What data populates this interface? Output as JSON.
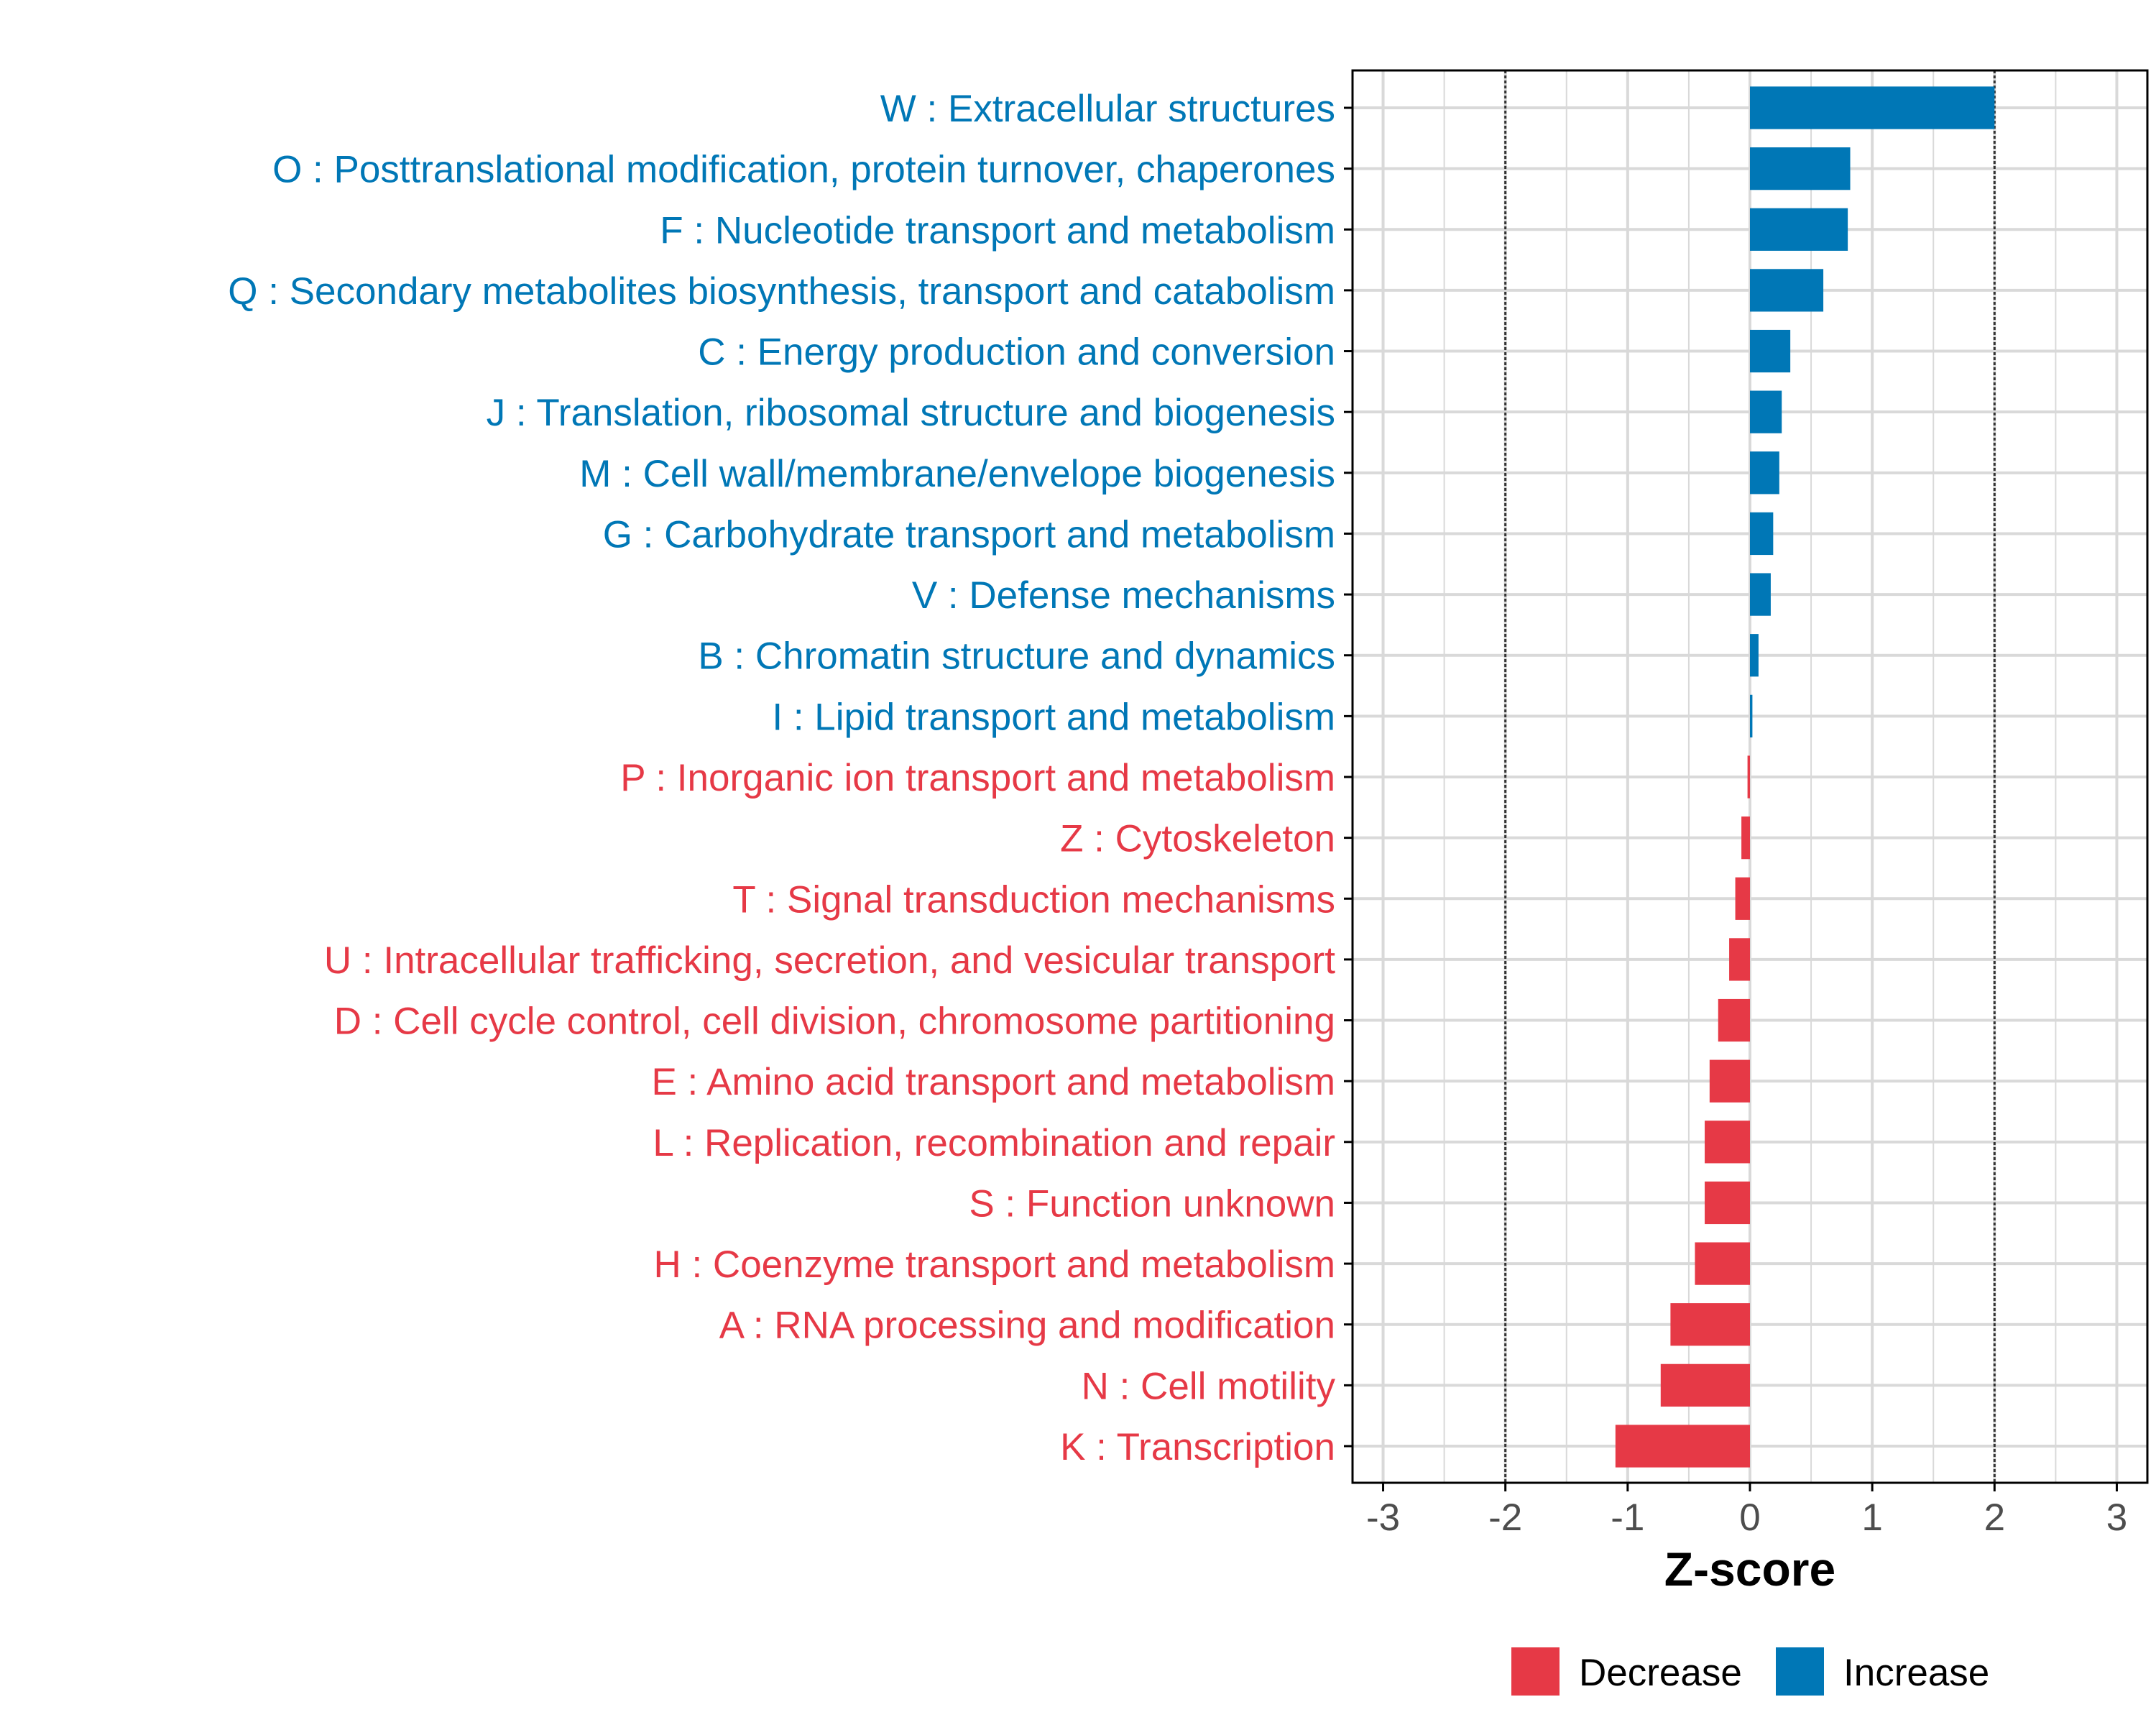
{
  "chart_data": {
    "type": "bar",
    "orientation": "horizontal",
    "title": "",
    "xlabel": "Z-score",
    "ylabel": "",
    "xlim": [
      -3.25,
      3.25
    ],
    "x_ticks": [
      "-3",
      "-2",
      "-1",
      "0",
      "1",
      "2",
      "3"
    ],
    "x_tick_values": [
      -3,
      -2,
      -1,
      0,
      1,
      2,
      3
    ],
    "reference_lines": [
      -2,
      2
    ],
    "grid": true,
    "categories": [
      "W : Extracellular structures",
      "O : Posttranslational modification, protein turnover, chaperones",
      "F : Nucleotide transport and metabolism",
      "Q : Secondary metabolites biosynthesis, transport and catabolism",
      "C : Energy production and conversion",
      "J : Translation, ribosomal structure and biogenesis",
      "M : Cell wall/membrane/envelope biogenesis",
      "G : Carbohydrate transport and metabolism",
      "V : Defense mechanisms",
      "B : Chromatin structure and dynamics",
      "I : Lipid transport and metabolism",
      "P : Inorganic ion transport and metabolism",
      "Z : Cytoskeleton",
      "T : Signal transduction mechanisms",
      "U : Intracellular trafficking, secretion, and vesicular transport",
      "D : Cell cycle control, cell division, chromosome partitioning",
      "E : Amino acid transport and metabolism",
      "L : Replication, recombination and repair",
      "S : Function unknown",
      "H : Coenzyme transport and metabolism",
      "A : RNA processing and modification",
      "N : Cell motility",
      "K : Transcription"
    ],
    "values": [
      2.0,
      0.82,
      0.8,
      0.6,
      0.33,
      0.26,
      0.24,
      0.19,
      0.17,
      0.07,
      0.02,
      -0.02,
      -0.07,
      -0.12,
      -0.17,
      -0.26,
      -0.33,
      -0.37,
      -0.37,
      -0.45,
      -0.65,
      -0.73,
      -1.1
    ],
    "legend": {
      "position": "bottom",
      "entries": [
        {
          "label": "Decrease",
          "color": "#E63946"
        },
        {
          "label": "Increase",
          "color": "#0077B6"
        }
      ]
    },
    "colors": {
      "increase": "#0077B6",
      "decrease": "#E63946",
      "grid": "#D9D9D9",
      "axis": "#000000",
      "tick_label": "#4D4D4D",
      "reference_line": "#333333"
    }
  }
}
